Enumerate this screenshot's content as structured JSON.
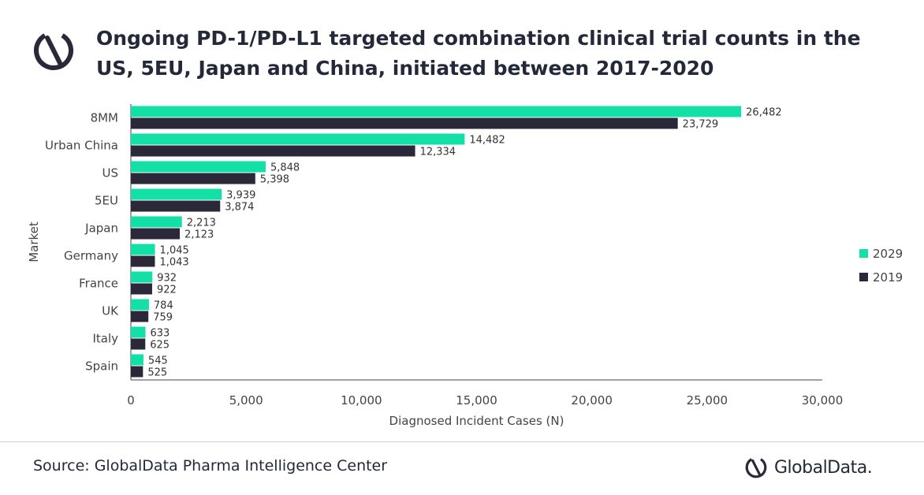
{
  "title": "Ongoing PD-1/PD-L1 targeted combination clinical trial counts in the US, 5EU, Japan and China, initiated between 2017-2020",
  "source": "Source: GlobalData Pharma Intelligence Center",
  "brand": "GlobalData.",
  "brand_icon": "globaldata-logo-icon",
  "colors": {
    "2029": "#12e0a6",
    "2019": "#2b2939"
  },
  "chart_data": {
    "type": "bar",
    "orientation": "horizontal",
    "categories": [
      "8MM",
      "Urban China",
      "US",
      "5EU",
      "Japan",
      "Germany",
      "France",
      "UK",
      "Italy",
      "Spain"
    ],
    "series": [
      {
        "name": "2029",
        "values": [
          26482,
          14482,
          5848,
          3939,
          2213,
          1045,
          932,
          784,
          633,
          545
        ],
        "labels": [
          "26,482",
          "14,482",
          "5,848",
          "3,939",
          "2,213",
          "1,045",
          "932",
          "784",
          "633",
          "545"
        ]
      },
      {
        "name": "2019",
        "values": [
          23729,
          12334,
          5398,
          3874,
          2123,
          1043,
          922,
          759,
          625,
          525
        ],
        "labels": [
          "23,729",
          "12,334",
          "5,398",
          "3,874",
          "2,123",
          "1,043",
          "922",
          "759",
          "625",
          "525"
        ]
      }
    ],
    "xlabel": "Diagnosed Incident Cases (N)",
    "ylabel": "Market",
    "xlim": [
      0,
      30000
    ],
    "xticks": [
      0,
      5000,
      10000,
      15000,
      20000,
      25000,
      30000
    ],
    "xtick_labels": [
      "0",
      "5,000",
      "10,000",
      "15,000",
      "20,000",
      "25,000",
      "30,000"
    ],
    "grid": false,
    "legend_position": "right"
  }
}
